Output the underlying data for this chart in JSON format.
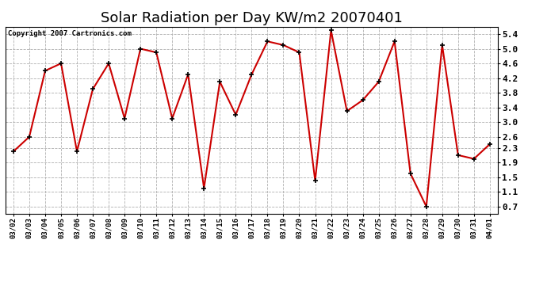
{
  "title": "Solar Radiation per Day KW/m2 20070401",
  "copyright": "Copyright 2007 Cartronics.com",
  "dates": [
    "03/02",
    "03/03",
    "03/04",
    "03/05",
    "03/06",
    "03/07",
    "03/08",
    "03/09",
    "03/10",
    "03/11",
    "03/12",
    "03/13",
    "03/14",
    "03/15",
    "03/16",
    "03/17",
    "03/18",
    "03/19",
    "03/20",
    "03/21",
    "03/22",
    "03/23",
    "03/24",
    "03/25",
    "03/26",
    "03/27",
    "03/28",
    "03/29",
    "03/30",
    "03/31",
    "04/01"
  ],
  "values": [
    2.2,
    2.6,
    4.4,
    4.6,
    2.2,
    3.9,
    4.6,
    3.1,
    5.0,
    4.9,
    3.1,
    4.3,
    1.2,
    4.1,
    3.2,
    4.3,
    5.2,
    5.1,
    4.9,
    1.4,
    5.5,
    3.3,
    3.6,
    4.1,
    5.2,
    1.6,
    0.7,
    5.1,
    2.1,
    2.0,
    2.4
  ],
  "line_color": "#cc0000",
  "marker": "+",
  "marker_color": "#000000",
  "marker_size": 5,
  "line_width": 1.5,
  "ylim": [
    0.5,
    5.6
  ],
  "yticks": [
    0.7,
    1.1,
    1.5,
    1.9,
    2.3,
    2.6,
    3.0,
    3.4,
    3.8,
    4.2,
    4.6,
    5.0,
    5.4
  ],
  "bg_color": "#ffffff",
  "grid_color": "#b0b0b0",
  "title_fontsize": 13,
  "copyright_fontsize": 6.5
}
